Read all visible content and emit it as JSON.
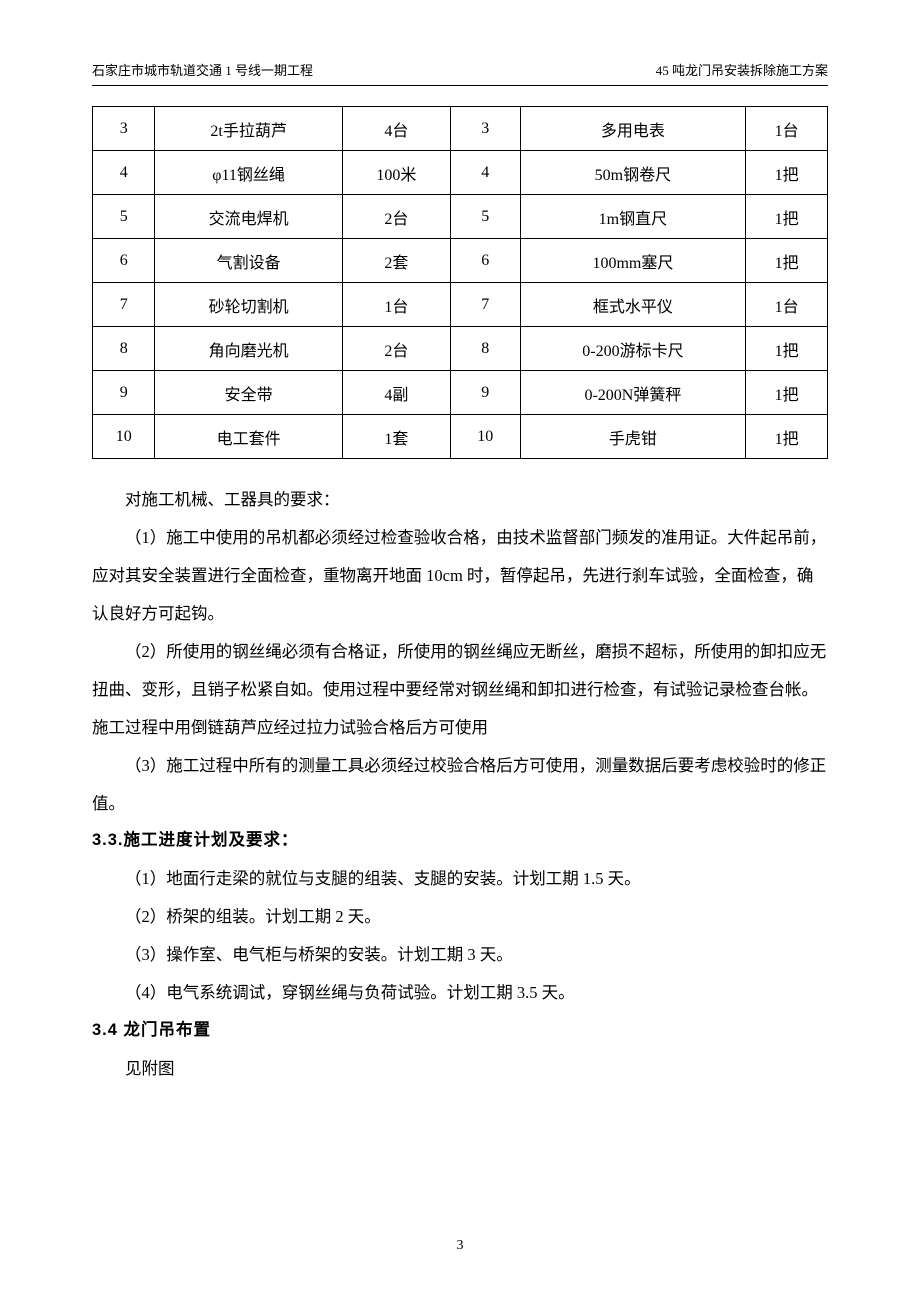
{
  "header": {
    "left": "石家庄市城市轨道交通 1 号线一期工程",
    "right": "45 吨龙门吊安装拆除施工方案"
  },
  "table": {
    "rows": [
      [
        "3",
        "2t手拉葫芦",
        "4台",
        "3",
        "多用电表",
        "1台"
      ],
      [
        "4",
        "φ11钢丝绳",
        "100米",
        "4",
        "50m钢卷尺",
        "1把"
      ],
      [
        "5",
        "交流电焊机",
        "2台",
        "5",
        "1m钢直尺",
        "1把"
      ],
      [
        "6",
        "气割设备",
        "2套",
        "6",
        "100mm塞尺",
        "1把"
      ],
      [
        "7",
        "砂轮切割机",
        "1台",
        "7",
        "框式水平仪",
        "1台"
      ],
      [
        "8",
        "角向磨光机",
        "2台",
        "8",
        "0-200游标卡尺",
        "1把"
      ],
      [
        "9",
        "安全带",
        "4副",
        "9",
        "0-200N弹簧秤",
        "1把"
      ],
      [
        "10",
        "电工套件",
        "1套",
        "10",
        "手虎钳",
        "1把"
      ]
    ]
  },
  "paragraphs": {
    "intro": "对施工机械、工器具的要求：",
    "p1": "（1）施工中使用的吊机都必须经过检查验收合格，由技术监督部门频发的准用证。大件起吊前，应对其安全装置进行全面检查，重物离开地面 10cm 时，暂停起吊，先进行刹车试验，全面检查，确认良好方可起钩。",
    "p2": "（2）所使用的钢丝绳必须有合格证，所使用的钢丝绳应无断丝，磨损不超标，所使用的卸扣应无扭曲、变形，且销子松紧自如。使用过程中要经常对钢丝绳和卸扣进行检查，有试验记录检查台帐。施工过程中用倒链葫芦应经过拉力试验合格后方可使用",
    "p3": "（3）施工过程中所有的测量工具必须经过校验合格后方可使用，测量数据后要考虑校验时的修正值。"
  },
  "section33": {
    "title": "3.3.施工进度计划及要求：",
    "items": [
      "（1）地面行走梁的就位与支腿的组装、支腿的安装。计划工期 1.5 天。",
      "（2）桥架的组装。计划工期 2 天。",
      "（3）操作室、电气柜与桥架的安装。计划工期 3 天。",
      "（4）电气系统调试，穿钢丝绳与负荷试验。计划工期 3.5 天。"
    ]
  },
  "section34": {
    "title": "3.4 龙门吊布置",
    "body": "见附图"
  },
  "pageNumber": "3"
}
